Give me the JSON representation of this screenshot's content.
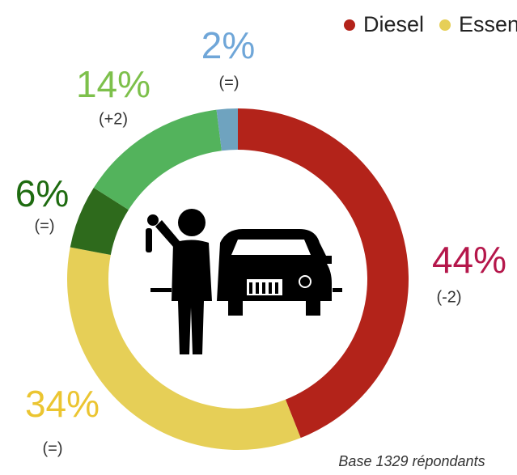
{
  "chart_data": {
    "type": "donut",
    "categories": [
      "Diesel",
      "Essence",
      null,
      null,
      null
    ],
    "values": [
      44,
      34,
      6,
      14,
      2
    ],
    "value_labels": [
      "44%",
      "34%",
      "6%",
      "14%",
      "2%"
    ],
    "changes": [
      "(-2)",
      "(=)",
      "(=)",
      "(+2)",
      "(=)"
    ],
    "colors": [
      "#b3231a",
      "#e6cf57",
      "#2e6a1c",
      "#53b35c",
      "#6fa3bf"
    ],
    "label_colors": [
      "#b5174b",
      "#ebc531",
      "#1e6b10",
      "#7dc04b",
      "#6fa6d8"
    ],
    "legend": "top-right",
    "note": "Base 1329 répondants"
  }
}
